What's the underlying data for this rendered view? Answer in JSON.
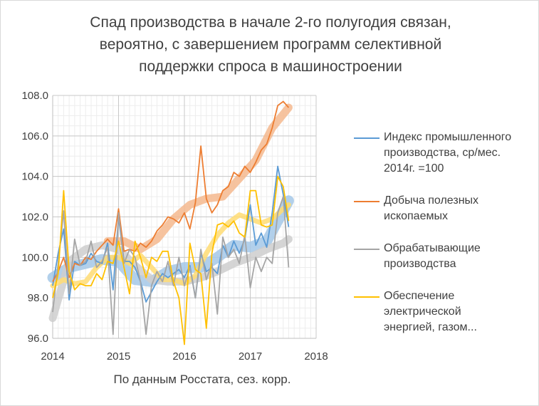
{
  "chart_data": {
    "type": "line",
    "title_lines": [
      "Спад производства в начале 2-го полугодия связан,",
      "вероятно, с завершением программ  селективной",
      "поддержки спроса в машиностроении"
    ],
    "xlabel": "По данным Росстата, сез. корр.",
    "ylabel": "",
    "xlim": [
      2014,
      2018
    ],
    "ylim": [
      96,
      108
    ],
    "x_ticks": [
      "2014",
      "2015",
      "2016",
      "2017",
      "2018"
    ],
    "y_ticks": [
      "96.0",
      "98.0",
      "100.0",
      "102.0",
      "104.0",
      "106.0",
      "108.0"
    ],
    "grid": true,
    "legend_position": "right",
    "series": [
      {
        "name": "Индекс промышленного производства, ср/мес. 2014г. =100",
        "legend_lines": [
          "Индекс промышленного",
          "производства, ср/мес.",
          "2014г. =100"
        ],
        "color": "#5b9bd5",
        "x": [
          2014.0,
          2014.083,
          2014.167,
          2014.25,
          2014.333,
          2014.417,
          2014.5,
          2014.583,
          2014.667,
          2014.75,
          2014.833,
          2014.917,
          2015.0,
          2015.083,
          2015.167,
          2015.25,
          2015.333,
          2015.417,
          2015.5,
          2015.583,
          2015.667,
          2015.75,
          2015.833,
          2015.917,
          2016.0,
          2016.083,
          2016.167,
          2016.25,
          2016.333,
          2016.417,
          2016.5,
          2016.583,
          2016.667,
          2016.75,
          2016.833,
          2016.917,
          2017.0,
          2017.083,
          2017.167,
          2017.25,
          2017.333,
          2017.417,
          2017.5,
          2017.583
        ],
        "values": [
          98.6,
          100.2,
          101.4,
          97.9,
          99.8,
          99.6,
          99.7,
          100.2,
          99.8,
          99.7,
          100.7,
          98.4,
          102.0,
          99.8,
          99.8,
          99.5,
          98.8,
          97.8,
          98.3,
          98.8,
          99.2,
          99.0,
          99.2,
          99.4,
          99.0,
          99.6,
          98.0,
          100.2,
          99.3,
          99.5,
          99.2,
          100.6,
          100.0,
          100.8,
          100.2,
          100.9,
          102.6,
          100.6,
          101.2,
          100.5,
          102.2,
          104.5,
          103.1,
          101.5
        ],
        "trend_x": [
          2014.0,
          2014.25,
          2014.5,
          2014.75,
          2015.0,
          2015.25,
          2015.5,
          2015.75,
          2016.0,
          2016.25,
          2016.5,
          2016.75,
          2017.0,
          2017.25,
          2017.5,
          2017.583
        ],
        "trend_values": [
          99.0,
          99.5,
          99.7,
          99.9,
          99.8,
          98.9,
          98.8,
          99.3,
          99.5,
          99.5,
          100.0,
          100.6,
          100.5,
          100.8,
          102.3,
          102.8
        ]
      },
      {
        "name": "Добыча полезных ископаемых",
        "legend_lines": [
          "Добыча полезных",
          "ископаемых"
        ],
        "color": "#ed7d31",
        "x": [
          2014.0,
          2014.083,
          2014.167,
          2014.25,
          2014.333,
          2014.417,
          2014.5,
          2014.583,
          2014.667,
          2014.75,
          2014.833,
          2014.917,
          2015.0,
          2015.083,
          2015.167,
          2015.25,
          2015.333,
          2015.417,
          2015.5,
          2015.583,
          2015.667,
          2015.75,
          2015.833,
          2015.917,
          2016.0,
          2016.083,
          2016.167,
          2016.25,
          2016.333,
          2016.417,
          2016.5,
          2016.583,
          2016.667,
          2016.75,
          2016.833,
          2016.917,
          2017.0,
          2017.083,
          2017.167,
          2017.25,
          2017.333,
          2017.417,
          2017.5,
          2017.583
        ],
        "values": [
          98.8,
          99.3,
          100.0,
          99.0,
          99.7,
          99.6,
          100.0,
          99.9,
          100.3,
          100.6,
          100.9,
          100.6,
          102.4,
          100.3,
          100.4,
          100.3,
          100.7,
          100.5,
          100.8,
          101.3,
          101.6,
          102.0,
          101.9,
          101.7,
          102.2,
          101.4,
          102.7,
          105.5,
          102.9,
          102.2,
          102.6,
          103.3,
          103.5,
          104.2,
          104.0,
          104.5,
          104.2,
          104.7,
          105.3,
          105.6,
          106.4,
          107.5,
          107.7,
          107.4
        ],
        "trend_x": [
          2014.833,
          2015.083,
          2015.333,
          2015.583,
          2015.833,
          2016.083,
          2016.333,
          2016.583,
          2016.833,
          2017.083,
          2017.333,
          2017.583
        ],
        "trend_values": [
          100.8,
          100.8,
          100.4,
          100.9,
          101.9,
          102.6,
          102.9,
          103.0,
          103.9,
          104.8,
          106.4,
          107.4
        ]
      },
      {
        "name": "Обрабатывающие производства",
        "legend_lines": [
          "Обрабатывающие",
          "производства"
        ],
        "color": "#a5a5a5",
        "x": [
          2014.0,
          2014.083,
          2014.167,
          2014.25,
          2014.333,
          2014.417,
          2014.5,
          2014.583,
          2014.667,
          2014.75,
          2014.833,
          2014.917,
          2015.0,
          2015.083,
          2015.167,
          2015.25,
          2015.333,
          2015.417,
          2015.5,
          2015.583,
          2015.667,
          2015.75,
          2015.833,
          2015.917,
          2016.0,
          2016.083,
          2016.167,
          2016.25,
          2016.333,
          2016.417,
          2016.5,
          2016.583,
          2016.667,
          2016.75,
          2016.833,
          2016.917,
          2017.0,
          2017.083,
          2017.167,
          2017.25,
          2017.333,
          2017.417,
          2017.5,
          2017.583
        ],
        "values": [
          97.3,
          99.7,
          102.3,
          98.2,
          100.9,
          99.6,
          99.8,
          100.8,
          99.5,
          99.8,
          100.5,
          96.2,
          102.2,
          99.7,
          100.4,
          100.0,
          98.8,
          96.2,
          98.6,
          99.3,
          98.8,
          99.8,
          98.6,
          100.0,
          98.6,
          99.5,
          98.0,
          100.4,
          98.9,
          99.7,
          97.2,
          101.0,
          100.0,
          100.4,
          99.7,
          101.1,
          98.5,
          100.0,
          99.3,
          100.0,
          99.7,
          102.2,
          103.0,
          99.5
        ],
        "trend_x": [
          2014.0,
          2014.25,
          2014.5,
          2014.75,
          2015.0,
          2015.25,
          2015.5,
          2015.75,
          2016.0,
          2016.25,
          2016.5,
          2016.75,
          2017.0,
          2017.25,
          2017.5,
          2017.583
        ],
        "trend_values": [
          97.0,
          99.8,
          100.4,
          100.6,
          100.4,
          99.6,
          98.9,
          98.8,
          98.8,
          99.0,
          99.3,
          99.7,
          100.0,
          100.4,
          100.7,
          100.9
        ]
      },
      {
        "name": "Обеспечение электрической энергией, газом...",
        "legend_lines": [
          "Обеспечение",
          "электрической",
          "энергией, газом..."
        ],
        "color": "#ffc000",
        "x": [
          2014.0,
          2014.083,
          2014.167,
          2014.25,
          2014.333,
          2014.417,
          2014.5,
          2014.583,
          2014.667,
          2014.75,
          2014.833,
          2014.917,
          2015.0,
          2015.083,
          2015.167,
          2015.25,
          2015.333,
          2015.417,
          2015.5,
          2015.583,
          2015.667,
          2015.75,
          2015.833,
          2015.917,
          2016.0,
          2016.083,
          2016.167,
          2016.25,
          2016.333,
          2016.417,
          2016.5,
          2016.583,
          2016.667,
          2016.75,
          2016.833,
          2016.917,
          2017.0,
          2017.083,
          2017.167,
          2017.25,
          2017.333,
          2017.417,
          2017.5,
          2017.583
        ],
        "values": [
          98.0,
          99.2,
          103.3,
          99.3,
          98.4,
          98.7,
          98.6,
          98.6,
          99.2,
          98.9,
          99.8,
          99.7,
          100.8,
          99.5,
          98.2,
          100.8,
          100.0,
          99.0,
          100.0,
          99.8,
          100.3,
          100.3,
          98.8,
          98.0,
          95.7,
          100.7,
          99.4,
          99.2,
          96.5,
          100.2,
          101.6,
          101.7,
          101.5,
          101.8,
          101.2,
          101.0,
          103.3,
          103.3,
          101.6,
          101.5,
          101.6,
          104.0,
          103.5,
          101.8
        ],
        "trend_x": [
          2014.0,
          2014.167,
          2014.333,
          2014.5,
          2014.667,
          2014.833,
          2015.0,
          2015.167,
          2015.333,
          2015.5,
          2015.667,
          2015.833,
          2016.0,
          2016.167,
          2016.333,
          2016.5,
          2016.667,
          2016.833,
          2017.0,
          2017.167,
          2017.333,
          2017.5,
          2017.583
        ],
        "trend_values": [
          98.6,
          98.9,
          98.7,
          98.8,
          99.5,
          100.0,
          100.0,
          99.7,
          100.1,
          99.5,
          98.9,
          98.9,
          98.7,
          99.1,
          100.2,
          101.1,
          101.7,
          102.1,
          101.9,
          101.7,
          101.9,
          102.4,
          102.6
        ]
      }
    ]
  }
}
